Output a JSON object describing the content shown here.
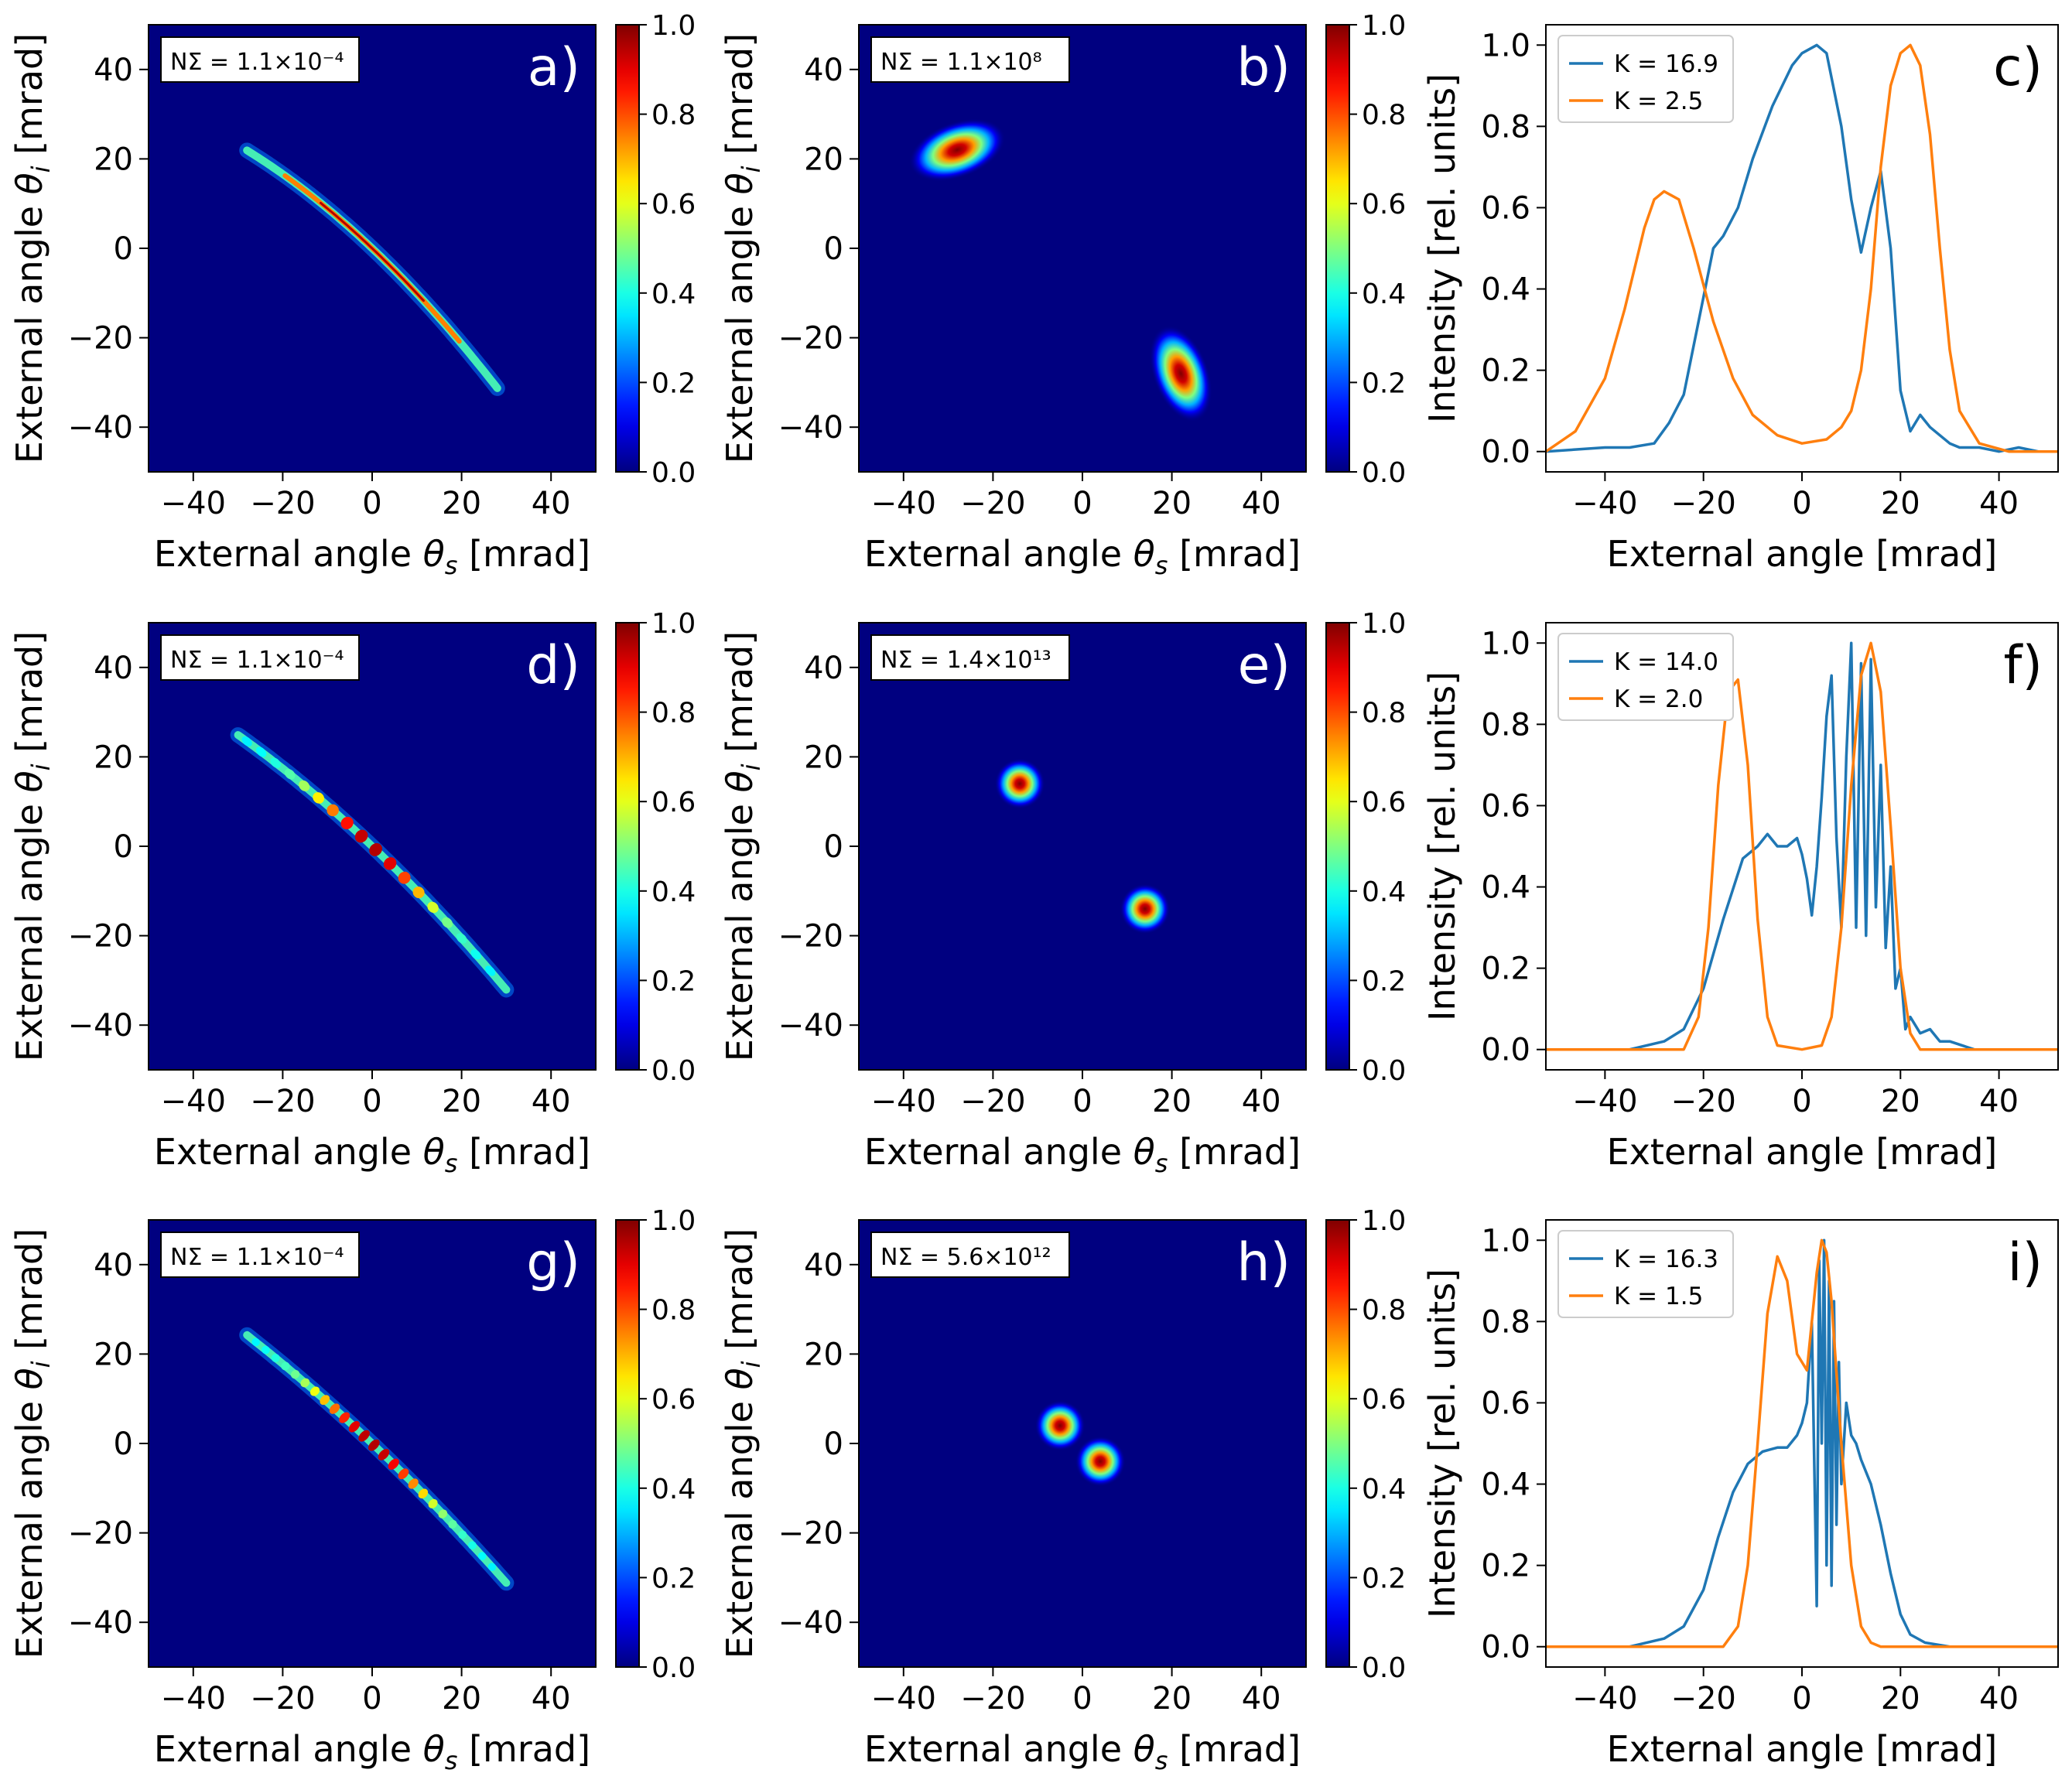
{
  "figure": {
    "x_label_2d": "External angle θs [mrad]",
    "y_label_2d": "External angle θi [mrad]",
    "x_label_1d": "External angle [mrad]",
    "y_label_1d": "Intensity [rel. units]"
  },
  "chart_data": [
    {
      "id": "a",
      "type": "heatmap",
      "panel_label": "a)",
      "norm_label": "NΣ = 1.1×10⁻⁴",
      "xlabel": "External angle θs [mrad]",
      "ylabel": "External angle θi [mrad]",
      "xlim": [
        -50,
        50
      ],
      "ylim": [
        -50,
        50
      ],
      "xticks": [
        -40,
        -20,
        0,
        20,
        40
      ],
      "yticks": [
        -40,
        -20,
        0,
        20,
        40
      ],
      "colorbar": {
        "range": [
          0,
          1
        ],
        "ticks": [
          "0.0",
          "0.2",
          "0.4",
          "0.6",
          "0.8",
          "1.0"
        ],
        "colormap": "jet"
      },
      "pattern": "ridge",
      "ridge": {
        "extent": [
          -28,
          28
        ],
        "slope": -0.95,
        "curv": -0.006,
        "fringes": false
      }
    },
    {
      "id": "b",
      "type": "heatmap",
      "panel_label": "b)",
      "norm_label": "NΣ = 1.1×10⁸",
      "xlabel": "External angle θs [mrad]",
      "ylabel": "External angle θi [mrad]",
      "xlim": [
        -50,
        50
      ],
      "ylim": [
        -50,
        50
      ],
      "xticks": [
        -40,
        -20,
        0,
        20,
        40
      ],
      "yticks": [
        -40,
        -20,
        0,
        20,
        40
      ],
      "colorbar": {
        "range": [
          0,
          1
        ],
        "ticks": [
          "0.0",
          "0.2",
          "0.4",
          "0.6",
          "0.8",
          "1.0"
        ],
        "colormap": "jet"
      },
      "pattern": "blobs",
      "blobs": [
        {
          "x": -28,
          "y": 22,
          "sx": 9,
          "sy": 5,
          "angle": -20
        },
        {
          "x": 22,
          "y": -28,
          "sx": 5,
          "sy": 9,
          "angle": -20
        }
      ]
    },
    {
      "id": "c",
      "type": "line",
      "panel_label": "c)",
      "xlabel": "External angle [mrad]",
      "ylabel": "Intensity [rel. units]",
      "xlim": [
        -52,
        52
      ],
      "ylim": [
        -0.05,
        1.05
      ],
      "xticks": [
        -40,
        -20,
        0,
        20,
        40
      ],
      "yticks": [
        0.0,
        0.2,
        0.4,
        0.6,
        0.8,
        1.0
      ],
      "series": [
        {
          "name": "K = 16.9",
          "color": "#1f77b4",
          "x": [
            -52,
            -40,
            -35,
            -30,
            -27,
            -24,
            -20,
            -18,
            -16,
            -13,
            -10,
            -6,
            -2,
            0,
            3,
            5,
            8,
            10,
            12,
            14,
            16,
            18,
            20,
            22,
            24,
            26,
            28,
            30,
            32,
            36,
            40,
            44,
            48,
            52
          ],
          "y": [
            0.0,
            0.01,
            0.01,
            0.02,
            0.07,
            0.14,
            0.38,
            0.5,
            0.53,
            0.6,
            0.72,
            0.85,
            0.95,
            0.98,
            1.0,
            0.98,
            0.8,
            0.62,
            0.49,
            0.6,
            0.69,
            0.5,
            0.15,
            0.05,
            0.09,
            0.06,
            0.04,
            0.02,
            0.01,
            0.01,
            0.0,
            0.01,
            0.0,
            0.0
          ]
        },
        {
          "name": "K = 2.5",
          "color": "#ff7f0e",
          "x": [
            -52,
            -46,
            -40,
            -36,
            -32,
            -30,
            -28,
            -25,
            -22,
            -18,
            -14,
            -10,
            -5,
            0,
            5,
            8,
            10,
            12,
            14,
            16,
            18,
            20,
            22,
            24,
            26,
            28,
            30,
            32,
            36,
            42,
            52
          ],
          "y": [
            0.0,
            0.05,
            0.18,
            0.35,
            0.55,
            0.62,
            0.64,
            0.62,
            0.5,
            0.32,
            0.18,
            0.09,
            0.04,
            0.02,
            0.03,
            0.06,
            0.1,
            0.2,
            0.4,
            0.7,
            0.9,
            0.98,
            1.0,
            0.95,
            0.78,
            0.5,
            0.25,
            0.1,
            0.02,
            0.0,
            0.0
          ]
        }
      ],
      "legend": "upper-left"
    },
    {
      "id": "d",
      "type": "heatmap",
      "panel_label": "d)",
      "norm_label": "NΣ = 1.1×10⁻⁴",
      "xlabel": "External angle θs [mrad]",
      "ylabel": "External angle θi [mrad]",
      "xlim": [
        -50,
        50
      ],
      "ylim": [
        -50,
        50
      ],
      "xticks": [
        -40,
        -20,
        0,
        20,
        40
      ],
      "yticks": [
        -40,
        -20,
        0,
        20,
        40
      ],
      "colorbar": {
        "range": [
          0,
          1
        ],
        "ticks": [
          "0.0",
          "0.2",
          "0.4",
          "0.6",
          "0.8",
          "1.0"
        ],
        "colormap": "jet"
      },
      "pattern": "ridge",
      "ridge": {
        "extent": [
          -30,
          30
        ],
        "slope": -0.95,
        "curv": -0.004,
        "fringes": true,
        "period": 3.2
      }
    },
    {
      "id": "e",
      "type": "heatmap",
      "panel_label": "e)",
      "norm_label": "NΣ = 1.4×10¹³",
      "xlabel": "External angle θs [mrad]",
      "ylabel": "External angle θi [mrad]",
      "xlim": [
        -50,
        50
      ],
      "ylim": [
        -50,
        50
      ],
      "xticks": [
        -40,
        -20,
        0,
        20,
        40
      ],
      "yticks": [
        -40,
        -20,
        0,
        20,
        40
      ],
      "colorbar": {
        "range": [
          0,
          1
        ],
        "ticks": [
          "0.0",
          "0.2",
          "0.4",
          "0.6",
          "0.8",
          "1.0"
        ],
        "colormap": "jet"
      },
      "pattern": "blobs",
      "blobs": [
        {
          "x": -14,
          "y": 14,
          "sx": 4.5,
          "sy": 4.5,
          "angle": 0
        },
        {
          "x": 14,
          "y": -14,
          "sx": 4.5,
          "sy": 4.5,
          "angle": 0
        }
      ]
    },
    {
      "id": "f",
      "type": "line",
      "panel_label": "f)",
      "xlabel": "External angle [mrad]",
      "ylabel": "Intensity [rel. units]",
      "xlim": [
        -52,
        52
      ],
      "ylim": [
        -0.05,
        1.05
      ],
      "xticks": [
        -40,
        -20,
        0,
        20,
        40
      ],
      "yticks": [
        0.0,
        0.2,
        0.4,
        0.6,
        0.8,
        1.0
      ],
      "series": [
        {
          "name": "K = 14.0",
          "color": "#1f77b4",
          "x": [
            -52,
            -35,
            -28,
            -24,
            -20,
            -16,
            -12,
            -9,
            -7,
            -5,
            -3,
            -1,
            0,
            1,
            2,
            3,
            4,
            5,
            6,
            7,
            8,
            9,
            10,
            11,
            12,
            13,
            14,
            15,
            16,
            17,
            18,
            19,
            20,
            21,
            22,
            24,
            26,
            28,
            30,
            35,
            52
          ],
          "y": [
            0.0,
            0.0,
            0.02,
            0.05,
            0.15,
            0.32,
            0.47,
            0.5,
            0.53,
            0.5,
            0.5,
            0.52,
            0.48,
            0.42,
            0.33,
            0.45,
            0.62,
            0.82,
            0.92,
            0.52,
            0.3,
            0.72,
            1.0,
            0.3,
            0.95,
            0.28,
            0.96,
            0.35,
            0.7,
            0.25,
            0.45,
            0.15,
            0.2,
            0.05,
            0.08,
            0.04,
            0.05,
            0.02,
            0.02,
            0.0,
            0.0
          ]
        },
        {
          "name": "K = 2.0",
          "color": "#ff7f0e",
          "x": [
            -52,
            -24,
            -21,
            -19,
            -17,
            -15,
            -13,
            -11,
            -9,
            -7,
            -5,
            0,
            4,
            6,
            8,
            10,
            12,
            14,
            16,
            18,
            20,
            22,
            24,
            52
          ],
          "y": [
            0.0,
            0.0,
            0.08,
            0.3,
            0.65,
            0.88,
            0.91,
            0.7,
            0.32,
            0.08,
            0.01,
            0.0,
            0.01,
            0.08,
            0.3,
            0.65,
            0.92,
            1.0,
            0.88,
            0.55,
            0.2,
            0.04,
            0.0,
            0.0
          ]
        }
      ],
      "legend": "upper-left"
    },
    {
      "id": "g",
      "type": "heatmap",
      "panel_label": "g)",
      "norm_label": "NΣ = 1.1×10⁻⁴",
      "xlabel": "External angle θs [mrad]",
      "ylabel": "External angle θi [mrad]",
      "xlim": [
        -50,
        50
      ],
      "ylim": [
        -50,
        50
      ],
      "xticks": [
        -40,
        -20,
        0,
        20,
        40
      ],
      "yticks": [
        -40,
        -20,
        0,
        20,
        40
      ],
      "colorbar": {
        "range": [
          0,
          1
        ],
        "ticks": [
          "0.0",
          "0.2",
          "0.4",
          "0.6",
          "0.8",
          "1.0"
        ],
        "colormap": "jet"
      },
      "pattern": "ridge",
      "ridge": {
        "extent": [
          -28,
          30
        ],
        "slope": -0.95,
        "curv": -0.003,
        "fringes": true,
        "period": 2.2
      }
    },
    {
      "id": "h",
      "type": "heatmap",
      "panel_label": "h)",
      "norm_label": "NΣ = 5.6×10¹²",
      "xlabel": "External angle θs [mrad]",
      "ylabel": "External angle θi [mrad]",
      "xlim": [
        -50,
        50
      ],
      "ylim": [
        -50,
        50
      ],
      "xticks": [
        -40,
        -20,
        0,
        20,
        40
      ],
      "yticks": [
        -40,
        -20,
        0,
        20,
        40
      ],
      "colorbar": {
        "range": [
          0,
          1
        ],
        "ticks": [
          "0.0",
          "0.2",
          "0.4",
          "0.6",
          "0.8",
          "1.0"
        ],
        "colormap": "jet"
      },
      "pattern": "blobs",
      "blobs": [
        {
          "x": -5,
          "y": 4,
          "sx": 4.5,
          "sy": 4.5,
          "angle": 0
        },
        {
          "x": 4,
          "y": -4,
          "sx": 4.5,
          "sy": 4.5,
          "angle": 0
        }
      ]
    },
    {
      "id": "i",
      "type": "line",
      "panel_label": "i)",
      "xlabel": "External angle [mrad]",
      "ylabel": "Intensity [rel. units]",
      "xlim": [
        -52,
        52
      ],
      "ylim": [
        -0.05,
        1.05
      ],
      "xticks": [
        -40,
        -20,
        0,
        20,
        40
      ],
      "yticks": [
        0.0,
        0.2,
        0.4,
        0.6,
        0.8,
        1.0
      ],
      "series": [
        {
          "name": "K = 16.3",
          "color": "#1f77b4",
          "x": [
            -52,
            -35,
            -28,
            -24,
            -20,
            -17,
            -14,
            -11,
            -8,
            -5,
            -3,
            -1,
            0,
            1,
            2,
            3,
            3.5,
            4,
            4.5,
            5,
            5.5,
            6,
            6.5,
            7,
            7.5,
            8,
            9,
            10,
            11,
            12,
            14,
            16,
            18,
            20,
            22,
            25,
            30,
            52
          ],
          "y": [
            0.0,
            0.0,
            0.02,
            0.05,
            0.14,
            0.27,
            0.38,
            0.45,
            0.48,
            0.49,
            0.49,
            0.52,
            0.55,
            0.6,
            0.8,
            0.1,
            0.95,
            0.5,
            1.0,
            0.2,
            0.9,
            0.15,
            0.85,
            0.3,
            0.7,
            0.4,
            0.6,
            0.52,
            0.5,
            0.46,
            0.4,
            0.3,
            0.18,
            0.08,
            0.03,
            0.01,
            0.0,
            0.0
          ]
        },
        {
          "name": "K = 1.5",
          "color": "#ff7f0e",
          "x": [
            -52,
            -16,
            -13,
            -11,
            -9,
            -7,
            -5,
            -3,
            -1,
            1,
            3,
            4,
            5,
            6,
            8,
            10,
            12,
            14,
            16,
            52
          ],
          "y": [
            0.0,
            0.0,
            0.05,
            0.2,
            0.5,
            0.82,
            0.96,
            0.9,
            0.72,
            0.68,
            0.92,
            1.0,
            0.97,
            0.85,
            0.5,
            0.2,
            0.05,
            0.01,
            0.0,
            0.0
          ]
        }
      ],
      "legend": "upper-left"
    }
  ]
}
